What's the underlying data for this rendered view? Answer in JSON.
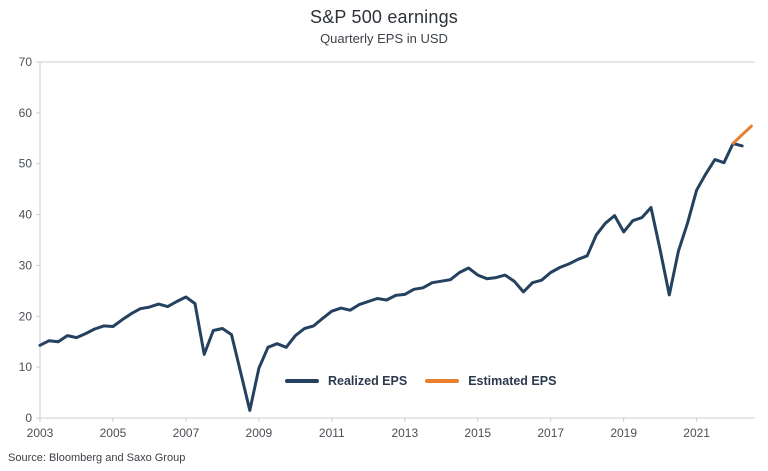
{
  "page": {
    "source": "Source: Bloomberg and Saxo Group"
  },
  "colors": {
    "realized": "#24415F",
    "estimated": "#E8802F",
    "axis_line": "#C9CDD2",
    "tick_label": "#4A5056",
    "title_text": "#2E3338"
  },
  "chart_data": {
    "type": "line",
    "title": "S&P 500 earnings",
    "subtitle": "Quarterly EPS in USD",
    "xlabel": "",
    "ylabel": "",
    "xlim": [
      2003,
      2022.6
    ],
    "ylim": [
      0,
      70
    ],
    "y_ticks": [
      0,
      10,
      20,
      30,
      40,
      50,
      60,
      70
    ],
    "x_ticks": [
      2003,
      2005,
      2007,
      2009,
      2011,
      2013,
      2015,
      2017,
      2019,
      2021
    ],
    "grid": "top-border-only",
    "legend_position": "inside-bottom-center",
    "x_unit": "year-quarterly",
    "series": [
      {
        "name": "Realized EPS",
        "color": "#24415F",
        "x_start": 2003.0,
        "x_step": 0.25,
        "values": [
          14.3,
          15.2,
          15.0,
          16.2,
          15.8,
          16.6,
          17.5,
          18.1,
          18.0,
          19.3,
          20.5,
          21.5,
          21.8,
          22.4,
          21.9,
          22.9,
          23.8,
          22.5,
          12.5,
          17.2,
          17.6,
          16.4,
          9.0,
          1.5,
          9.8,
          13.9,
          14.6,
          13.9,
          16.2,
          17.6,
          18.1,
          19.6,
          21.0,
          21.6,
          21.2,
          22.3,
          22.9,
          23.5,
          23.2,
          24.1,
          24.3,
          25.3,
          25.6,
          26.6,
          26.9,
          27.2,
          28.6,
          29.5,
          28.1,
          27.4,
          27.6,
          28.1,
          26.9,
          24.8,
          26.6,
          27.1,
          28.6,
          29.6,
          30.3,
          31.2,
          31.9,
          36.0,
          38.3,
          39.8,
          36.6,
          38.8,
          39.4,
          41.4,
          33.0,
          24.2,
          32.8,
          38.3,
          44.8,
          48.0,
          50.8,
          50.2,
          54.0,
          53.5
        ]
      },
      {
        "name": "Estimated EPS",
        "color": "#E8802F",
        "x_start": 2022.0,
        "x_step": 0.25,
        "values": [
          54.0,
          55.7,
          57.4
        ]
      }
    ]
  }
}
